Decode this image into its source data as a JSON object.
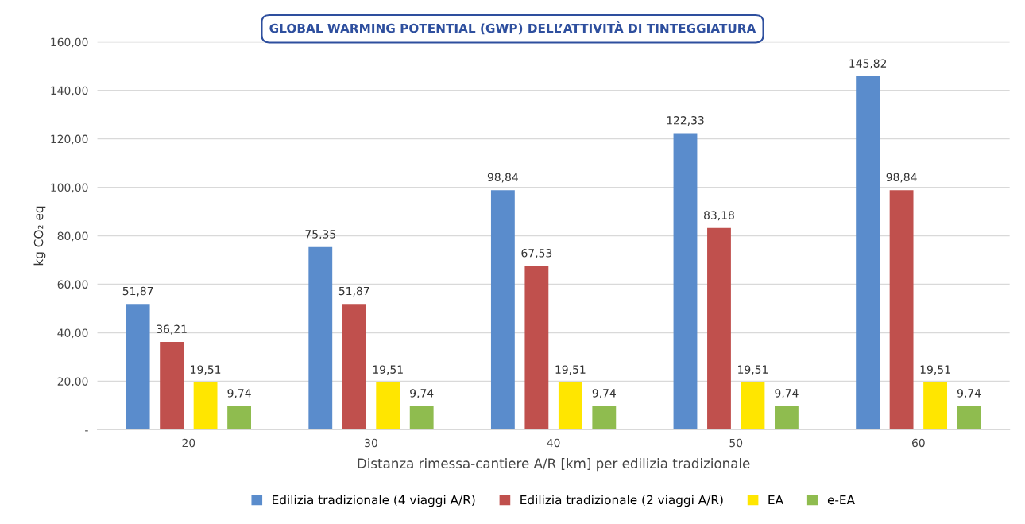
{
  "chart_data": {
    "type": "bar",
    "title": "GLOBAL WARMING POTENTIAL (GWP) DELL’ATTIVITÀ DI TINTEGGIATURA",
    "xlabel": "Distanza rimessa-cantiere A/R [km] per edilizia tradizionale",
    "ylabel": "kg CO₂ eq",
    "categories": [
      "20",
      "30",
      "40",
      "50",
      "60"
    ],
    "series": [
      {
        "name": "Edilizia tradizionale (4 viaggi A/R)",
        "color": "#5a8ccc",
        "values": [
          51.87,
          75.35,
          98.84,
          122.33,
          145.82
        ],
        "value_labels": [
          "51,87",
          "75,35",
          "98,84",
          "122,33",
          "145,82"
        ]
      },
      {
        "name": "Edilizia tradizionale (2 viaggi A/R)",
        "color": "#c0504d",
        "values": [
          36.21,
          51.87,
          67.53,
          83.18,
          98.84
        ],
        "value_labels": [
          "36,21",
          "51,87",
          "67,53",
          "83,18",
          "98,84"
        ]
      },
      {
        "name": "EA",
        "color": "#ffe600",
        "values": [
          19.51,
          19.51,
          19.51,
          19.51,
          19.51
        ],
        "value_labels": [
          "19,51",
          "19,51",
          "19,51",
          "19,51",
          "19,51"
        ]
      },
      {
        "name": "e-EA",
        "color": "#8fbc4f",
        "values": [
          9.74,
          9.74,
          9.74,
          9.74,
          9.74
        ],
        "value_labels": [
          "9,74",
          "9,74",
          "9,74",
          "9,74",
          "9,74"
        ]
      }
    ],
    "ylim": [
      0,
      160
    ],
    "yticks": [
      {
        "value": 0,
        "label": "-"
      },
      {
        "value": 20,
        "label": "20,00"
      },
      {
        "value": 40,
        "label": "40,00"
      },
      {
        "value": 60,
        "label": "60,00"
      },
      {
        "value": 80,
        "label": "80,00"
      },
      {
        "value": 100,
        "label": "100,00"
      },
      {
        "value": 120,
        "label": "120,00"
      },
      {
        "value": 140,
        "label": "140,00"
      },
      {
        "value": 160,
        "label": "160,00"
      }
    ],
    "grid": "y",
    "legend": "bottom"
  }
}
